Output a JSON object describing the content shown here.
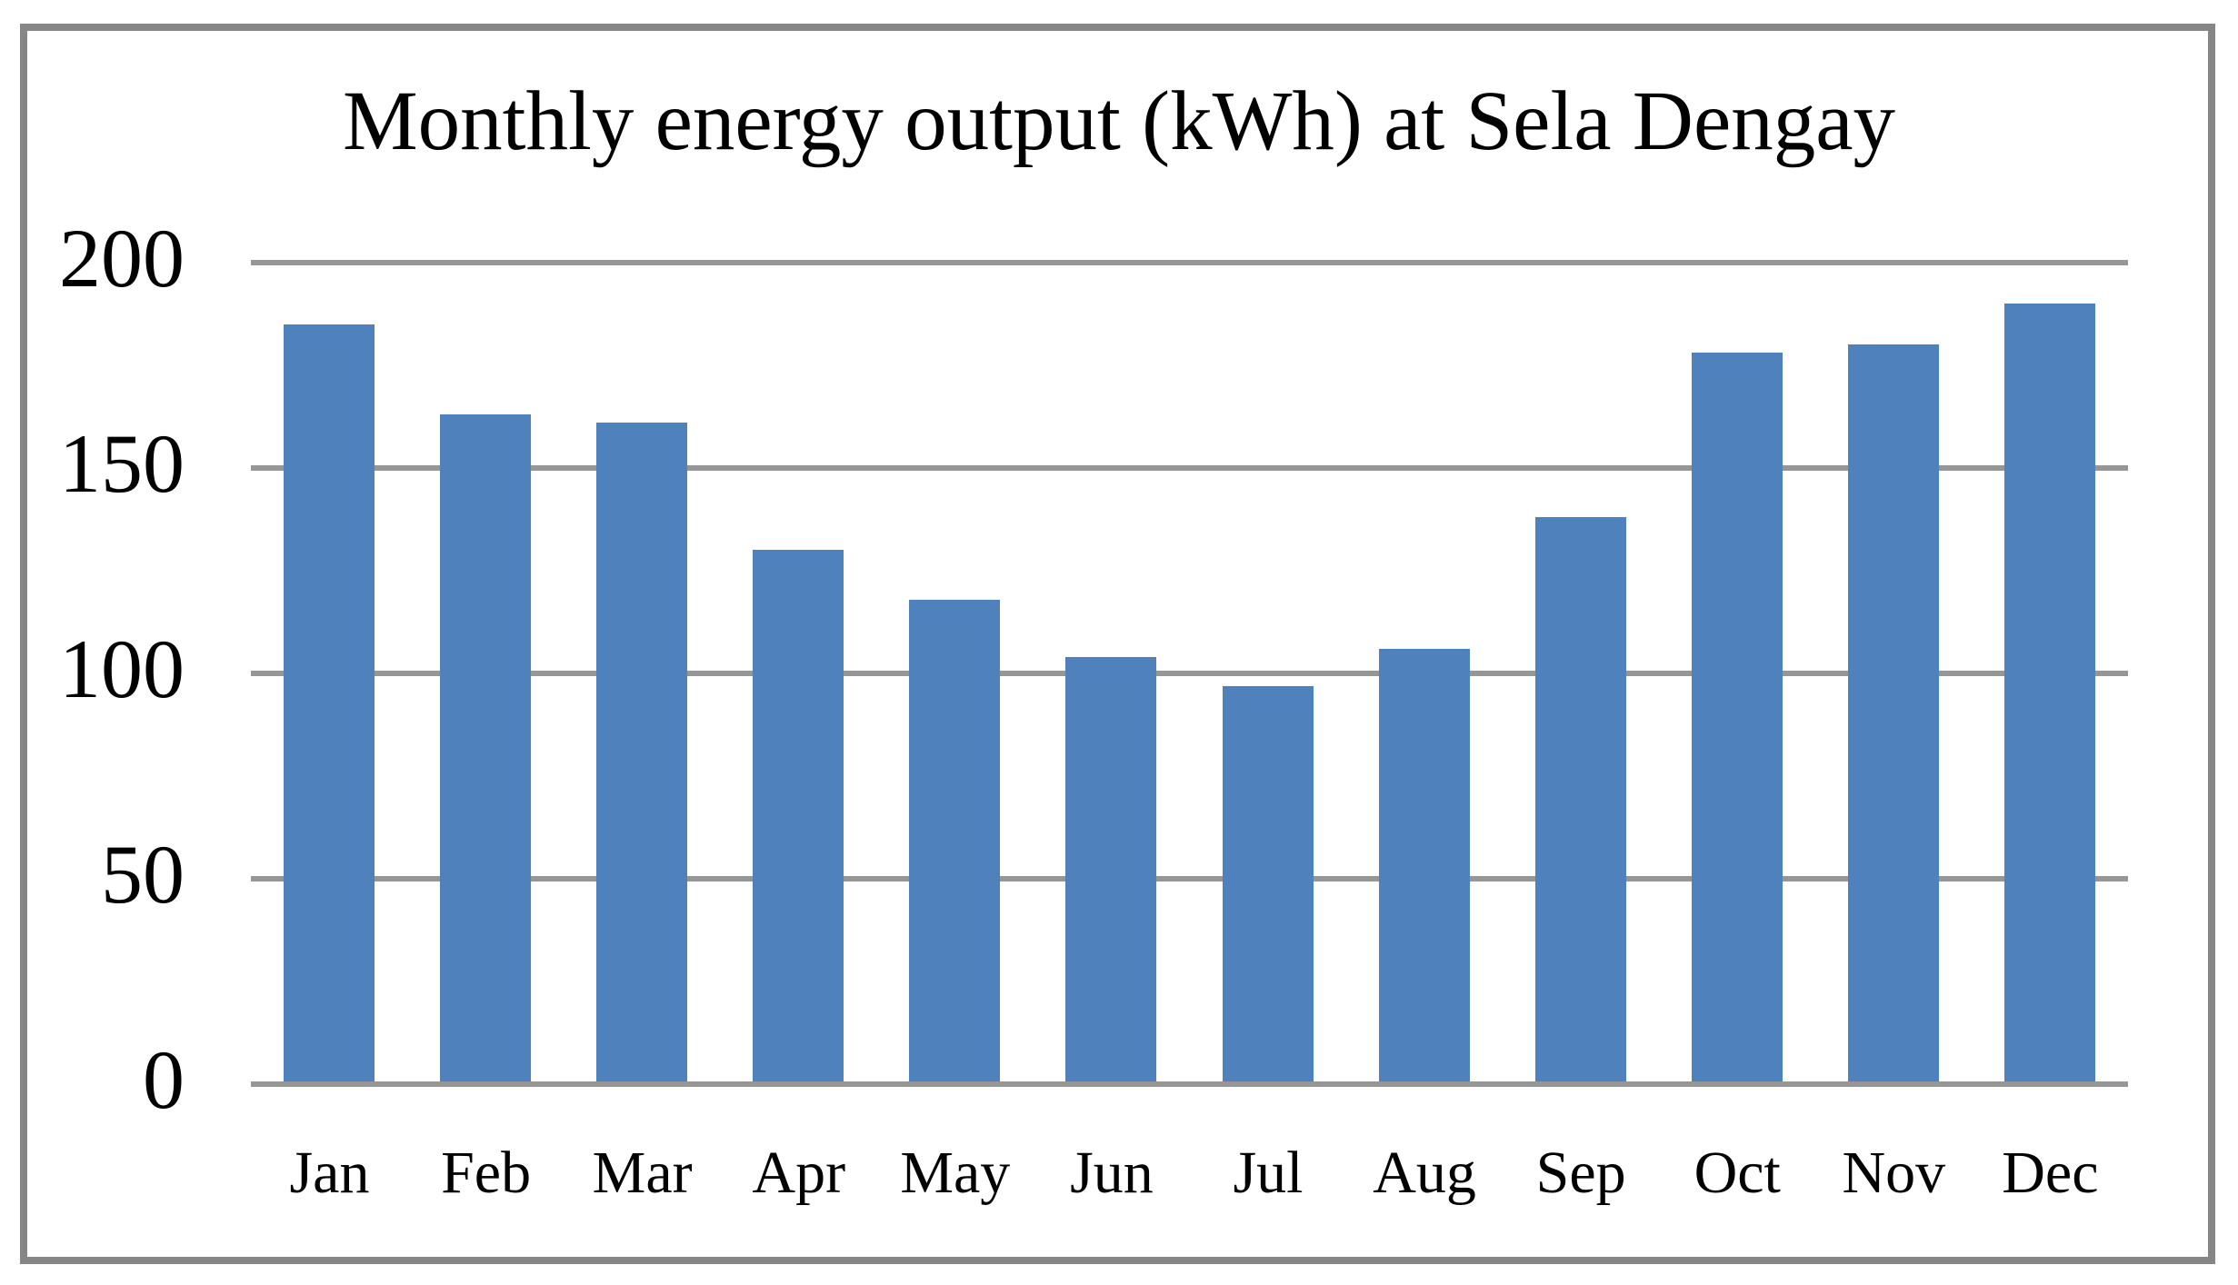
{
  "chart_data": {
    "type": "bar",
    "title": "Monthly energy output (kWh) at Sela Dengay",
    "categories": [
      "Jan",
      "Feb",
      "Mar",
      "Apr",
      "May",
      "Jun",
      "Jul",
      "Aug",
      "Sep",
      "Oct",
      "Nov",
      "Dec"
    ],
    "values": [
      185,
      163,
      161,
      130,
      118,
      104,
      97,
      106,
      138,
      178,
      180,
      190
    ],
    "xlabel": "",
    "ylabel": "",
    "yticks": [
      0,
      50,
      100,
      150,
      200
    ],
    "ylim": [
      0,
      200
    ],
    "grid": true,
    "legend": "none",
    "colors": {
      "bar": "#4F81BD",
      "gridline": "#969696",
      "frame_border": "#868686",
      "text": "#000000",
      "background": "#FFFFFF"
    }
  }
}
